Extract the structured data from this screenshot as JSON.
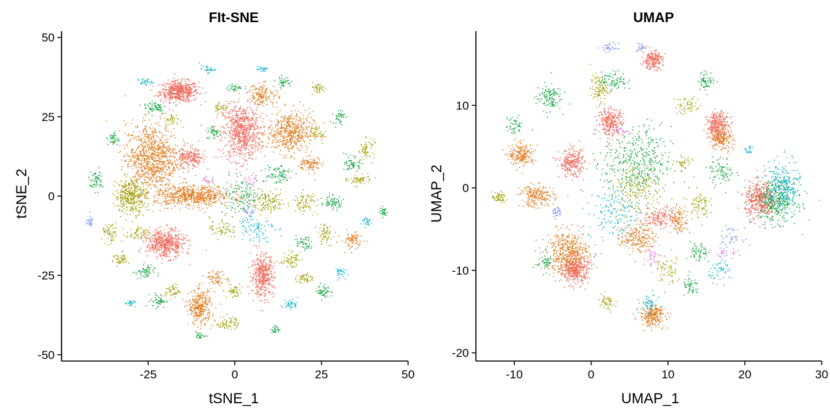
{
  "chart_data": [
    {
      "type": "scatter",
      "title": "FIt-SNE",
      "xlabel": "tSNE_1",
      "ylabel": "tSNE_2",
      "xlim": [
        -50,
        50
      ],
      "ylim": [
        -52,
        52
      ],
      "xticks": [
        "-25",
        "0",
        "25",
        "50"
      ],
      "yticks": [
        "-50",
        "-25",
        "0",
        "25",
        "50"
      ],
      "xtick_values": [
        -25,
        0,
        25,
        50
      ],
      "ytick_values": [
        -50,
        -25,
        0,
        25,
        50
      ],
      "grid": false,
      "legend": "none",
      "clusters": [
        {
          "x": -16,
          "y": 33,
          "sx": 5,
          "sy": 3,
          "color": "#F06B5E",
          "n": 500
        },
        {
          "x": 2,
          "y": 20,
          "sx": 5,
          "sy": 8,
          "color": "#F06B5E",
          "n": 700
        },
        {
          "x": 16,
          "y": 20,
          "sx": 6,
          "sy": 6,
          "color": "#E07E22",
          "n": 500
        },
        {
          "x": -24,
          "y": 12,
          "sx": 7,
          "sy": 10,
          "color": "#E07E22",
          "n": 900
        },
        {
          "x": -12,
          "y": 0,
          "sx": 10,
          "sy": 3,
          "color": "#E07E22",
          "n": 600
        },
        {
          "x": -20,
          "y": -15,
          "sx": 5,
          "sy": 4,
          "color": "#F06B5E",
          "n": 500
        },
        {
          "x": -30,
          "y": 0,
          "sx": 4,
          "sy": 5,
          "color": "#A8A619",
          "n": 350
        },
        {
          "x": 8,
          "y": -25,
          "sx": 3,
          "sy": 6,
          "color": "#F06B5E",
          "n": 400
        },
        {
          "x": -10,
          "y": -35,
          "sx": 3,
          "sy": 5,
          "color": "#E07E22",
          "n": 300
        },
        {
          "x": -13,
          "y": 12,
          "sx": 4,
          "sy": 3,
          "color": "#F06B5E",
          "n": 200
        },
        {
          "x": 8,
          "y": 32,
          "sx": 4,
          "sy": 3,
          "color": "#E07E22",
          "n": 150
        },
        {
          "x": 10,
          "y": -2,
          "sx": 4,
          "sy": 3,
          "color": "#A8A619",
          "n": 120
        },
        {
          "x": 2,
          "y": 0,
          "sx": 6,
          "sy": 5,
          "color": "#22A94C",
          "n": 140
        },
        {
          "x": 6,
          "y": -10,
          "sx": 5,
          "sy": 4,
          "color": "#1DB8CE",
          "n": 90
        },
        {
          "x": 12,
          "y": 7,
          "sx": 4,
          "sy": 3,
          "color": "#22A94C",
          "n": 80
        },
        {
          "x": 22,
          "y": 10,
          "sx": 3,
          "sy": 2,
          "color": "#E07E22",
          "n": 90
        },
        {
          "x": 34,
          "y": 10,
          "sx": 2,
          "sy": 2,
          "color": "#22A94C",
          "n": 60
        },
        {
          "x": 38,
          "y": 15,
          "sx": 2,
          "sy": 3,
          "color": "#A8A619",
          "n": 60
        },
        {
          "x": 36,
          "y": 5,
          "sx": 3,
          "sy": 1.5,
          "color": "#A8A619",
          "n": 60
        },
        {
          "x": 28,
          "y": -2,
          "sx": 3,
          "sy": 2,
          "color": "#22A94C",
          "n": 70
        },
        {
          "x": 20,
          "y": -2,
          "sx": 3,
          "sy": 3,
          "color": "#A8A619",
          "n": 80
        },
        {
          "x": 34,
          "y": -14,
          "sx": 3,
          "sy": 2.5,
          "color": "#E07E22",
          "n": 80
        },
        {
          "x": 26,
          "y": -12,
          "sx": 2,
          "sy": 3,
          "color": "#A8A619",
          "n": 60
        },
        {
          "x": 20,
          "y": -15,
          "sx": 2,
          "sy": 2,
          "color": "#22A94C",
          "n": 50
        },
        {
          "x": 16,
          "y": -20,
          "sx": 2.5,
          "sy": 2,
          "color": "#A8A619",
          "n": 60
        },
        {
          "x": 20,
          "y": -26,
          "sx": 2,
          "sy": 1.5,
          "color": "#A8A619",
          "n": 50
        },
        {
          "x": 26,
          "y": -30,
          "sx": 2,
          "sy": 2,
          "color": "#22A94C",
          "n": 50
        },
        {
          "x": 16,
          "y": -34,
          "sx": 2,
          "sy": 1.5,
          "color": "#1DB8CE",
          "n": 40
        },
        {
          "x": -2,
          "y": -40,
          "sx": 3,
          "sy": 2,
          "color": "#A8A619",
          "n": 70
        },
        {
          "x": -5,
          "y": -26,
          "sx": 3,
          "sy": 2,
          "color": "#E07E22",
          "n": 70
        },
        {
          "x": 0,
          "y": -30,
          "sx": 2,
          "sy": 2,
          "color": "#A8A619",
          "n": 50
        },
        {
          "x": -40,
          "y": 5,
          "sx": 1.8,
          "sy": 3,
          "color": "#22A94C",
          "n": 60
        },
        {
          "x": -36,
          "y": -12,
          "sx": 2,
          "sy": 3,
          "color": "#A8A619",
          "n": 60
        },
        {
          "x": -33,
          "y": -20,
          "sx": 2,
          "sy": 2,
          "color": "#A8A619",
          "n": 50
        },
        {
          "x": -26,
          "y": -24,
          "sx": 2.5,
          "sy": 2,
          "color": "#22A94C",
          "n": 60
        },
        {
          "x": -28,
          "y": -12,
          "sx": 3,
          "sy": 2,
          "color": "#A8A619",
          "n": 60
        },
        {
          "x": -22,
          "y": -33,
          "sx": 2,
          "sy": 2,
          "color": "#22A94C",
          "n": 50
        },
        {
          "x": -18,
          "y": -30,
          "sx": 2,
          "sy": 2,
          "color": "#A8A619",
          "n": 50
        },
        {
          "x": -23,
          "y": 28,
          "sx": 3,
          "sy": 2,
          "color": "#22A94C",
          "n": 60
        },
        {
          "x": -18,
          "y": 24,
          "sx": 2,
          "sy": 2,
          "color": "#A8A619",
          "n": 40
        },
        {
          "x": -6,
          "y": 20,
          "sx": 2,
          "sy": 2,
          "color": "#22A94C",
          "n": 40
        },
        {
          "x": -4,
          "y": 28,
          "sx": 2,
          "sy": 2,
          "color": "#A8A619",
          "n": 40
        },
        {
          "x": 14,
          "y": 36,
          "sx": 2,
          "sy": 1.5,
          "color": "#22A94C",
          "n": 40
        },
        {
          "x": 24,
          "y": 34,
          "sx": 2,
          "sy": 1.5,
          "color": "#A8A619",
          "n": 40
        },
        {
          "x": 30,
          "y": 25,
          "sx": 1.5,
          "sy": 2,
          "color": "#22A94C",
          "n": 40
        },
        {
          "x": 24,
          "y": 20,
          "sx": 2,
          "sy": 2,
          "color": "#A8A619",
          "n": 40
        },
        {
          "x": -35,
          "y": 18,
          "sx": 1.5,
          "sy": 2,
          "color": "#22A94C",
          "n": 40
        },
        {
          "x": -26,
          "y": 36,
          "sx": 2,
          "sy": 1,
          "color": "#1DB8CE",
          "n": 30
        },
        {
          "x": -8,
          "y": 40,
          "sx": 2,
          "sy": 1,
          "color": "#1DB8CE",
          "n": 30
        },
        {
          "x": 0,
          "y": 34,
          "sx": 2,
          "sy": 1,
          "color": "#22A94C",
          "n": 30
        },
        {
          "x": 8,
          "y": 40,
          "sx": 1.5,
          "sy": 1,
          "color": "#1DB8CE",
          "n": 25
        },
        {
          "x": 30,
          "y": -24,
          "sx": 1.5,
          "sy": 1.5,
          "color": "#1DB8CE",
          "n": 30
        },
        {
          "x": 38,
          "y": -8,
          "sx": 1.5,
          "sy": 1.5,
          "color": "#1DB8CE",
          "n": 30
        },
        {
          "x": 43,
          "y": -5,
          "sx": 1,
          "sy": 1.5,
          "color": "#22A94C",
          "n": 30
        },
        {
          "x": -42,
          "y": -8,
          "sx": 1,
          "sy": 1.5,
          "color": "#6F8CF5",
          "n": 25
        },
        {
          "x": -30,
          "y": -34,
          "sx": 1.5,
          "sy": 1,
          "color": "#1DB8CE",
          "n": 25
        },
        {
          "x": -4,
          "y": -10,
          "sx": 3,
          "sy": 3,
          "color": "#A8A619",
          "n": 60
        },
        {
          "x": -8,
          "y": 5,
          "sx": 2,
          "sy": 1,
          "color": "#E36BD8",
          "n": 20
        },
        {
          "x": 5,
          "y": 5,
          "sx": 2,
          "sy": 2,
          "color": "#E36BD8",
          "n": 20
        },
        {
          "x": 4,
          "y": -5,
          "sx": 2,
          "sy": 2,
          "color": "#6F8CF5",
          "n": 25
        },
        {
          "x": -10,
          "y": -44,
          "sx": 1.5,
          "sy": 1,
          "color": "#22A94C",
          "n": 25
        },
        {
          "x": 12,
          "y": -42,
          "sx": 1.5,
          "sy": 1,
          "color": "#22A94C",
          "n": 25
        }
      ]
    },
    {
      "type": "scatter",
      "title": "UMAP",
      "xlabel": "UMAP_1",
      "ylabel": "UMAP_2",
      "xlim": [
        -15,
        30
      ],
      "ylim": [
        -21,
        19
      ],
      "xticks": [
        "-10",
        "0",
        "10",
        "20",
        "30"
      ],
      "yticks": [
        "-20",
        "-10",
        "0",
        "10"
      ],
      "xtick_values": [
        -10,
        0,
        10,
        20,
        30
      ],
      "ytick_values": [
        -20,
        -10,
        0,
        10
      ],
      "grid": false,
      "legend": "none",
      "clusters": [
        {
          "x": 22,
          "y": -1.5,
          "sx": 1.8,
          "sy": 2,
          "color": "#F06B5E",
          "n": 400
        },
        {
          "x": 24,
          "y": -1.5,
          "sx": 2.5,
          "sy": 2.5,
          "color": "#22A94C",
          "n": 350
        },
        {
          "x": 25,
          "y": 0,
          "sx": 2,
          "sy": 3,
          "color": "#1DB8CE",
          "n": 250
        },
        {
          "x": 16.5,
          "y": 7.5,
          "sx": 1.3,
          "sy": 1.5,
          "color": "#F06B5E",
          "n": 300
        },
        {
          "x": 17,
          "y": 6,
          "sx": 1.3,
          "sy": 1.5,
          "color": "#E07E22",
          "n": 150
        },
        {
          "x": 8,
          "y": 15.5,
          "sx": 1.2,
          "sy": 1,
          "color": "#F06B5E",
          "n": 200
        },
        {
          "x": 2.5,
          "y": 8,
          "sx": 1.5,
          "sy": 1.5,
          "color": "#F06B5E",
          "n": 250
        },
        {
          "x": -9,
          "y": 4,
          "sx": 1.5,
          "sy": 1.2,
          "color": "#E07E22",
          "n": 200
        },
        {
          "x": -2.5,
          "y": 3,
          "sx": 1.5,
          "sy": 1.5,
          "color": "#F06B5E",
          "n": 250
        },
        {
          "x": -7,
          "y": -1,
          "sx": 2,
          "sy": 1.2,
          "color": "#E07E22",
          "n": 200
        },
        {
          "x": -3,
          "y": -8,
          "sx": 2.5,
          "sy": 2.5,
          "color": "#E07E22",
          "n": 500
        },
        {
          "x": -2,
          "y": -10,
          "sx": 1.5,
          "sy": 1.5,
          "color": "#F06B5E",
          "n": 300
        },
        {
          "x": 8,
          "y": -15.5,
          "sx": 1.5,
          "sy": 1.2,
          "color": "#E07E22",
          "n": 250
        },
        {
          "x": 6,
          "y": -6,
          "sx": 2,
          "sy": 1.5,
          "color": "#E07E22",
          "n": 200
        },
        {
          "x": 9,
          "y": -3.5,
          "sx": 2,
          "sy": 1.2,
          "color": "#F06B5E",
          "n": 150
        },
        {
          "x": 11.5,
          "y": -4,
          "sx": 1,
          "sy": 1.5,
          "color": "#E07E22",
          "n": 100
        },
        {
          "x": 6,
          "y": 3,
          "sx": 4,
          "sy": 4,
          "color": "#22A94C",
          "n": 400
        },
        {
          "x": 6,
          "y": 0,
          "sx": 3,
          "sy": 3,
          "color": "#A8A619",
          "n": 200
        },
        {
          "x": 3,
          "y": -3,
          "sx": 3,
          "sy": 3,
          "color": "#1DB8CE",
          "n": 150
        },
        {
          "x": 1,
          "y": 12,
          "sx": 1,
          "sy": 1.5,
          "color": "#A8A619",
          "n": 100
        },
        {
          "x": -5.5,
          "y": 11,
          "sx": 1.5,
          "sy": 1.5,
          "color": "#22A94C",
          "n": 120
        },
        {
          "x": -12,
          "y": -1.2,
          "sx": 0.8,
          "sy": 0.6,
          "color": "#A8A619",
          "n": 60
        },
        {
          "x": 3,
          "y": 13,
          "sx": 1.5,
          "sy": 1,
          "color": "#22A94C",
          "n": 80
        },
        {
          "x": 15,
          "y": 13,
          "sx": 1,
          "sy": 1,
          "color": "#22A94C",
          "n": 60
        },
        {
          "x": 12.5,
          "y": 10,
          "sx": 1.5,
          "sy": 1,
          "color": "#A8A619",
          "n": 60
        },
        {
          "x": 14,
          "y": -2,
          "sx": 1.2,
          "sy": 1.5,
          "color": "#A8A619",
          "n": 80
        },
        {
          "x": 17,
          "y": 2,
          "sx": 1.5,
          "sy": 1.5,
          "color": "#22A94C",
          "n": 80
        },
        {
          "x": 14,
          "y": -8,
          "sx": 1,
          "sy": 1.2,
          "color": "#22A94C",
          "n": 60
        },
        {
          "x": 17,
          "y": -10,
          "sx": 1.5,
          "sy": 1.2,
          "color": "#1DB8CE",
          "n": 60
        },
        {
          "x": 13,
          "y": -12,
          "sx": 1,
          "sy": 1,
          "color": "#22A94C",
          "n": 50
        },
        {
          "x": 2,
          "y": -14,
          "sx": 1,
          "sy": 1,
          "color": "#A8A619",
          "n": 50
        },
        {
          "x": 10,
          "y": -10,
          "sx": 1.5,
          "sy": 1.5,
          "color": "#A8A619",
          "n": 60
        },
        {
          "x": 8,
          "y": -8,
          "sx": 1.5,
          "sy": 1.5,
          "color": "#E36BD8",
          "n": 40
        },
        {
          "x": 18,
          "y": -6,
          "sx": 1.5,
          "sy": 1,
          "color": "#6F8CF5",
          "n": 40
        },
        {
          "x": 2.5,
          "y": 17,
          "sx": 1,
          "sy": 0.5,
          "color": "#6F8CF5",
          "n": 30
        },
        {
          "x": 6.5,
          "y": 17,
          "sx": 0.5,
          "sy": 0.5,
          "color": "#6F8CF5",
          "n": 20
        },
        {
          "x": 7.5,
          "y": -14,
          "sx": 1,
          "sy": 1,
          "color": "#1DB8CE",
          "n": 50
        },
        {
          "x": -4.5,
          "y": -3,
          "sx": 0.8,
          "sy": 0.6,
          "color": "#6F8CF5",
          "n": 25
        },
        {
          "x": 20.5,
          "y": 4.5,
          "sx": 0.5,
          "sy": 0.5,
          "color": "#1DB8CE",
          "n": 20
        },
        {
          "x": 12,
          "y": 3,
          "sx": 1,
          "sy": 1,
          "color": "#A8A619",
          "n": 40
        },
        {
          "x": -10,
          "y": 7.5,
          "sx": 1,
          "sy": 1,
          "color": "#22A94C",
          "n": 50
        },
        {
          "x": 4,
          "y": 7,
          "sx": 1,
          "sy": 0.5,
          "color": "#E36BD8",
          "n": 20
        },
        {
          "x": 18,
          "y": -8,
          "sx": 2,
          "sy": 0.5,
          "color": "#E36BD8",
          "n": 25
        },
        {
          "x": -6,
          "y": -9,
          "sx": 1,
          "sy": 1,
          "color": "#22A94C",
          "n": 50
        }
      ]
    }
  ]
}
